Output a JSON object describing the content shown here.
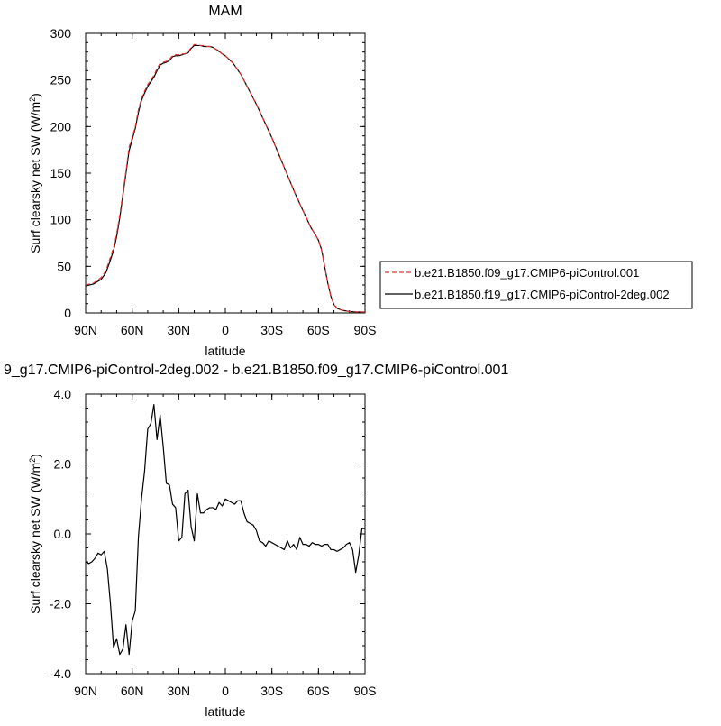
{
  "chart_data": [
    {
      "type": "line",
      "title": "MAM",
      "xlabel": "latitude",
      "ylabel_main": "Surf clearsky net SW (W/m",
      "ylabel_sup": "2",
      "ylabel_close": ")",
      "xlim": [
        90,
        -90
      ],
      "ylim": [
        0,
        300
      ],
      "x_ticks": [
        90,
        60,
        30,
        0,
        -30,
        -60,
        -90
      ],
      "x_tick_labels": [
        "90N",
        "60N",
        "30N",
        "0",
        "30S",
        "60S",
        "90S"
      ],
      "y_ticks": [
        0,
        50,
        100,
        150,
        200,
        250,
        300
      ],
      "y_tick_labels": [
        "0",
        "50",
        "100",
        "150",
        "200",
        "250",
        "300"
      ],
      "legend_placement": "right",
      "series": [
        {
          "name": "b.e21.B1850.f09_g17.CMIP6-piControl.001",
          "color": "#e0302a",
          "dash": "dashed",
          "x": [
            90,
            85,
            80,
            77,
            75,
            72,
            70,
            68,
            66,
            64,
            62,
            60,
            58,
            56,
            54,
            52,
            50,
            48,
            46,
            44,
            42,
            40,
            38,
            36,
            34,
            32,
            30,
            28,
            26,
            24,
            22,
            20,
            18,
            16,
            14,
            12,
            10,
            8,
            5,
            2,
            0,
            -5,
            -10,
            -15,
            -20,
            -25,
            -30,
            -35,
            -40,
            -45,
            -50,
            -55,
            -58,
            -60,
            -62,
            -64,
            -66,
            -68,
            -70,
            -72,
            -75,
            -80,
            -85,
            -90
          ],
          "values": [
            30,
            32,
            38,
            45,
            55,
            70,
            85,
            105,
            128,
            152,
            178,
            188,
            200,
            218,
            230,
            238,
            245,
            250,
            255,
            262,
            268,
            269,
            270,
            272,
            276,
            277,
            277,
            278,
            278,
            280,
            285,
            288,
            288,
            287,
            287,
            286,
            286,
            285,
            282,
            278,
            276,
            268,
            256,
            240,
            224,
            206,
            188,
            168,
            148,
            128,
            110,
            92,
            84,
            78,
            68,
            50,
            32,
            18,
            9,
            5,
            3,
            1.5,
            1,
            1
          ]
        },
        {
          "name": "b.e21.B1850.f19_g17.CMIP6-piControl-2deg.002",
          "color": "#000000",
          "dash": "solid",
          "x": [
            90,
            85,
            80,
            77,
            75,
            72,
            70,
            68,
            66,
            64,
            62,
            60,
            58,
            56,
            54,
            52,
            50,
            48,
            46,
            44,
            42,
            40,
            38,
            36,
            34,
            32,
            30,
            28,
            26,
            24,
            22,
            20,
            18,
            16,
            14,
            12,
            10,
            8,
            5,
            2,
            0,
            -5,
            -10,
            -15,
            -20,
            -25,
            -30,
            -35,
            -40,
            -45,
            -50,
            -55,
            -58,
            -60,
            -62,
            -64,
            -66,
            -68,
            -70,
            -72,
            -75,
            -80,
            -85,
            -90
          ],
          "values": [
            29,
            31,
            36,
            43,
            52,
            67,
            82,
            102,
            126,
            150,
            174,
            186,
            198,
            215,
            228,
            236,
            243,
            248,
            253,
            260,
            266,
            268,
            269,
            271,
            275,
            276,
            276,
            277,
            278,
            279,
            284,
            287,
            287,
            287,
            286,
            286,
            286,
            285,
            282,
            278,
            276,
            268,
            256,
            240,
            224,
            206,
            188,
            168,
            148,
            128,
            110,
            92,
            84,
            78,
            68,
            50,
            32,
            18,
            9,
            5,
            3,
            1.5,
            1,
            1
          ]
        }
      ]
    },
    {
      "type": "line",
      "title": "9_g17.CMIP6-piControl-2deg.002 - b.e21.B1850.f09_g17.CMIP6-piControl.001",
      "xlabel": "latitude",
      "ylabel_main": "Surf clearsky net SW (W/m",
      "ylabel_sup": "2",
      "ylabel_close": ")",
      "xlim": [
        90,
        -90
      ],
      "ylim": [
        -4,
        4
      ],
      "x_ticks": [
        90,
        60,
        30,
        0,
        -30,
        -60,
        -90
      ],
      "x_tick_labels": [
        "90N",
        "60N",
        "30N",
        "0",
        "30S",
        "60S",
        "90S"
      ],
      "y_ticks": [
        -4,
        -2,
        0,
        2,
        4
      ],
      "y_tick_labels": [
        "-4.0",
        "-2.0",
        "0.0",
        "2.0",
        "4.0"
      ],
      "series": [
        {
          "color": "#000000",
          "x": [
            90,
            88,
            86,
            84,
            82,
            80,
            78,
            76,
            74,
            72,
            70,
            68,
            66,
            64,
            62,
            60,
            58,
            56,
            54,
            52,
            50,
            48,
            46,
            44,
            42,
            40,
            38,
            36,
            34,
            32,
            30,
            28,
            26,
            24,
            22,
            20,
            18,
            16,
            14,
            12,
            10,
            8,
            6,
            4,
            2,
            0,
            -2,
            -4,
            -6,
            -8,
            -10,
            -12,
            -14,
            -16,
            -18,
            -20,
            -22,
            -24,
            -26,
            -28,
            -30,
            -32,
            -34,
            -36,
            -38,
            -40,
            -42,
            -44,
            -46,
            -48,
            -50,
            -52,
            -54,
            -56,
            -58,
            -60,
            -62,
            -64,
            -66,
            -68,
            -70,
            -72,
            -74,
            -76,
            -78,
            -80,
            -82,
            -84,
            -86,
            -88,
            -90
          ],
          "values": [
            -0.8,
            -0.85,
            -0.8,
            -0.7,
            -0.55,
            -0.6,
            -0.5,
            -1.0,
            -2.0,
            -3.25,
            -3.0,
            -3.45,
            -3.3,
            -2.6,
            -3.45,
            -2.5,
            -2.2,
            -0.1,
            1.0,
            1.8,
            3.0,
            3.15,
            3.7,
            2.7,
            3.4,
            2.5,
            1.45,
            1.4,
            0.85,
            0.75,
            -0.2,
            -0.1,
            1.15,
            1.25,
            0.2,
            -0.2,
            1.15,
            0.6,
            0.6,
            0.7,
            0.75,
            0.75,
            0.7,
            0.9,
            0.8,
            1.0,
            0.95,
            0.9,
            0.85,
            0.95,
            0.95,
            0.6,
            0.35,
            0.3,
            0.25,
            0.1,
            -0.2,
            -0.25,
            -0.35,
            -0.2,
            -0.25,
            -0.3,
            -0.35,
            -0.4,
            -0.45,
            -0.2,
            -0.4,
            -0.3,
            -0.45,
            -0.1,
            -0.3,
            -0.3,
            -0.35,
            -0.25,
            -0.3,
            -0.3,
            -0.35,
            -0.3,
            -0.3,
            -0.45,
            -0.45,
            -0.5,
            -0.45,
            -0.4,
            -0.3,
            -0.25,
            -0.45,
            -1.1,
            -0.6,
            0.15,
            0.15
          ]
        }
      ]
    }
  ]
}
